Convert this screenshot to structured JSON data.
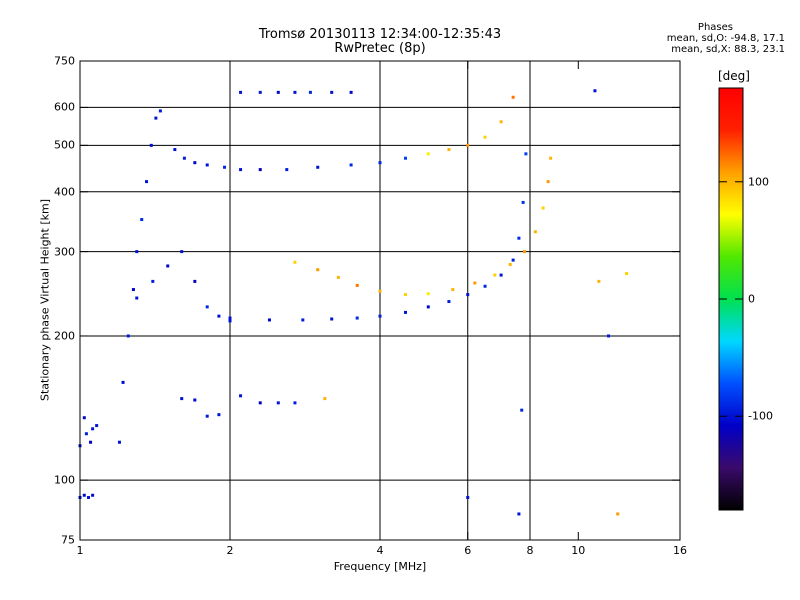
{
  "title_line_1": "Tromsø 20130113 12:34:00-12:35:43",
  "title_line_2": "RwPretec (8p)",
  "stats": {
    "heading": "Phases",
    "o_line": "mean, sd,O: -94.8, 17.1",
    "x_line": "mean, sd,X: 88.3, 23.1"
  },
  "colors": {
    "axes": "#000000",
    "grid": "#000000",
    "colorbar": [
      "#000000",
      "#3a0a6a",
      "#0000c8",
      "#0050ff",
      "#00d8ff",
      "#00e050",
      "#50e800",
      "#ffff00",
      "#ffa000",
      "#ff2000",
      "#ff0000"
    ]
  },
  "chart_data": {
    "type": "scatter",
    "title": "Tromsø 20130113 12:34:00-12:35:43",
    "subtitle": "RwPretec (8p)",
    "xlabel": "Frequency [MHz]",
    "ylabel": "Stationary phase Virtual Height [km]",
    "x_scale": "log",
    "y_scale": "log",
    "xlim": [
      1,
      16
    ],
    "ylim": [
      75,
      750
    ],
    "x_ticks": [
      1,
      2,
      4,
      6,
      8,
      10,
      16
    ],
    "y_ticks": [
      75,
      100,
      200,
      300,
      400,
      500,
      600,
      750
    ],
    "x_gridlines": [
      2,
      4,
      6,
      8
    ],
    "y_gridlines": [
      100,
      200,
      300,
      400,
      500,
      600
    ],
    "grid": true,
    "colorbar": {
      "unit": "deg",
      "ticks": [
        100,
        0,
        -100
      ],
      "range": [
        -180,
        180
      ]
    },
    "phase_stats": {
      "O": {
        "mean": -94.8,
        "sd": 17.1
      },
      "X": {
        "mean": 88.3,
        "sd": 23.1
      }
    },
    "series": [
      {
        "x": [
          1.0,
          1.02,
          1.04,
          1.06
        ],
        "y": [
          92,
          93,
          92,
          93
        ],
        "phase": [
          -100,
          -105,
          -98,
          -102
        ]
      },
      {
        "x": [
          1.0,
          1.03,
          1.05,
          1.08,
          1.02,
          1.06
        ],
        "y": [
          118,
          125,
          120,
          130,
          135,
          128
        ],
        "phase": [
          -100,
          -95,
          -110,
          -100,
          -105,
          -98
        ]
      },
      {
        "x": [
          1.2,
          1.22,
          1.25,
          1.28,
          1.3,
          1.33,
          1.36,
          1.39,
          1.42,
          1.45
        ],
        "y": [
          120,
          160,
          200,
          250,
          300,
          350,
          420,
          500,
          570,
          590
        ],
        "phase": [
          -100,
          -105,
          -95,
          -110,
          -100,
          -90,
          -100,
          -105,
          -100,
          -95
        ]
      },
      {
        "x": [
          1.55,
          1.62,
          1.7,
          1.8,
          1.95,
          2.1,
          2.3,
          2.6,
          3.0,
          3.5
        ],
        "y": [
          490,
          470,
          460,
          455,
          450,
          445,
          445,
          445,
          450,
          455
        ],
        "phase": [
          -100,
          -95,
          -105,
          -100,
          -90,
          -100,
          -110,
          -95,
          -100,
          -90
        ]
      },
      {
        "x": [
          4.0,
          4.5,
          5.0,
          5.5,
          6.0,
          6.5,
          7.0,
          7.4
        ],
        "y": [
          460,
          470,
          480,
          490,
          500,
          520,
          560,
          630
        ],
        "phase": [
          -90,
          -80,
          80,
          100,
          110,
          90,
          100,
          120
        ]
      },
      {
        "x": [
          1.3,
          1.4,
          1.5,
          1.6,
          1.7,
          1.8,
          1.9,
          2.0
        ],
        "y": [
          240,
          260,
          280,
          300,
          260,
          230,
          220,
          215
        ],
        "phase": [
          -100,
          -95,
          -105,
          -100,
          -110,
          -90,
          -100,
          -100
        ]
      },
      {
        "x": [
          2.0,
          2.4,
          2.8,
          3.2,
          3.6,
          4.0,
          4.5,
          5.0,
          5.5,
          6.0,
          6.5,
          7.0,
          7.4,
          7.6,
          7.75,
          7.85
        ],
        "y": [
          218,
          216,
          216,
          217,
          218,
          220,
          224,
          230,
          236,
          244,
          254,
          268,
          288,
          320,
          380,
          480
        ],
        "phase": [
          -100,
          -105,
          -95,
          -100,
          -90,
          -95,
          -100,
          -105,
          -95,
          -100,
          -90,
          -100,
          -95,
          -90,
          -85,
          -80
        ]
      },
      {
        "x": [
          2.7,
          3.0,
          3.3,
          3.6,
          4.0,
          4.5,
          5.0,
          5.6,
          6.2,
          6.8,
          7.3,
          7.8,
          8.2,
          8.5,
          8.7,
          8.8
        ],
        "y": [
          285,
          275,
          265,
          255,
          248,
          244,
          245,
          250,
          258,
          268,
          282,
          300,
          330,
          370,
          420,
          470
        ],
        "phase": [
          90,
          110,
          100,
          120,
          100,
          90,
          80,
          100,
          110,
          90,
          100,
          110,
          100,
          90,
          110,
          100
        ]
      },
      {
        "x": [
          1.6,
          1.7,
          1.8,
          1.9,
          2.1,
          2.3,
          2.5,
          2.7,
          3.1
        ],
        "y": [
          148,
          147,
          136,
          137,
          150,
          145,
          145,
          145,
          148
        ],
        "phase": [
          -100,
          -105,
          -95,
          -100,
          -100,
          -110,
          -100,
          -95,
          100
        ]
      },
      {
        "x": [
          2.1,
          2.3,
          2.5,
          2.7,
          2.9,
          3.2,
          3.5
        ],
        "y": [
          645,
          645,
          645,
          645,
          645,
          645,
          645
        ],
        "phase": [
          -100,
          -95,
          -105,
          -100,
          -90,
          -100,
          -105
        ]
      },
      {
        "x": [
          6.0,
          7.6,
          7.7,
          10.8,
          11.0,
          12.5,
          12.0,
          11.5
        ],
        "y": [
          92,
          85,
          140,
          650,
          260,
          270,
          85,
          200
        ],
        "phase": [
          -100,
          -100,
          -90,
          -100,
          100,
          90,
          110,
          -95
        ]
      }
    ]
  }
}
